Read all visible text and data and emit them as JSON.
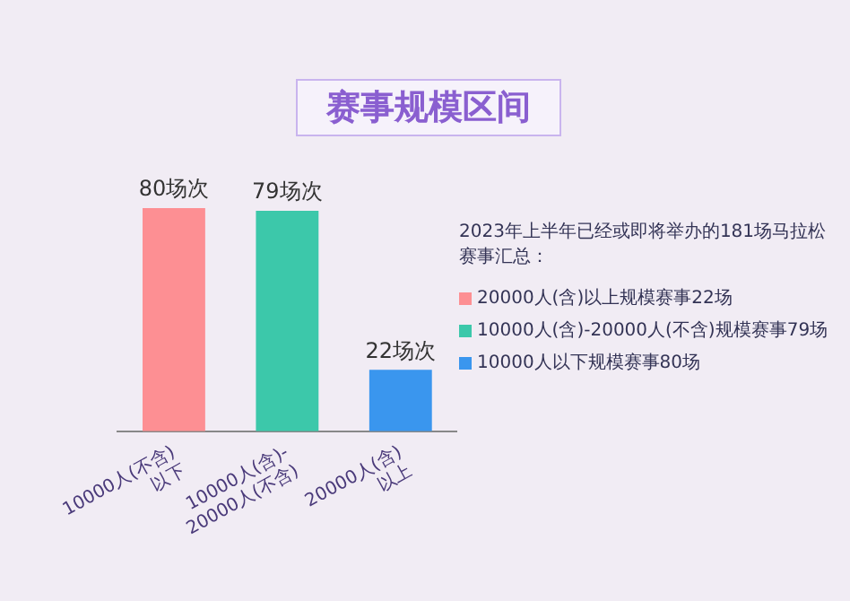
{
  "chart_data": {
    "type": "bar",
    "title": "赛事规模区间",
    "categories": [
      "10000人(不含)\n以下",
      "10000人(含)-\n20000人(不含)",
      "20000人(含)\n以上"
    ],
    "values": [
      80,
      79,
      22
    ],
    "colors": [
      "#fd8f93",
      "#3cc8aa",
      "#3a96ee"
    ],
    "value_labels": [
      "80场次",
      "79场次",
      "22场次"
    ],
    "annotations": [
      "2023年上半年已经或即将举办的181场马拉松赛事汇总：",
      "20000人(含)以上规模赛事22场",
      "10000人(含)-20000人(不含)规模赛事79场",
      "10000人以下规模赛事80场"
    ],
    "legend": false,
    "grid": false
  }
}
